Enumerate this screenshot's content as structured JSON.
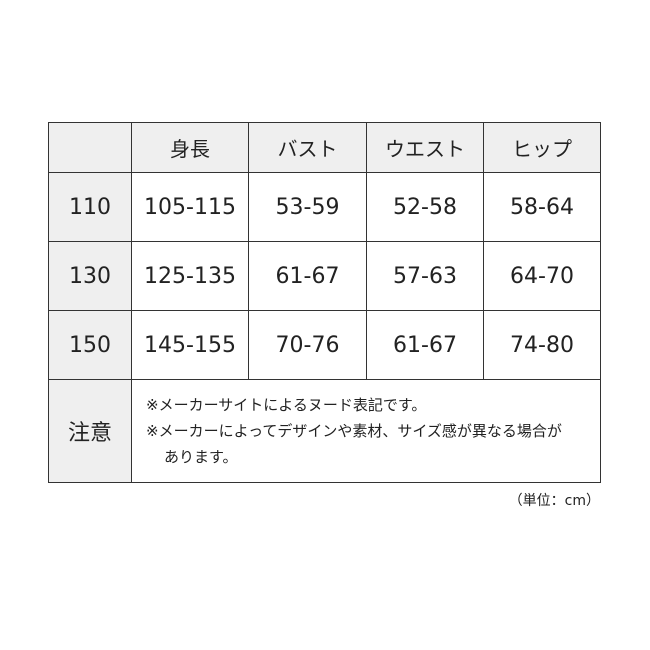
{
  "table": {
    "headers": [
      "",
      "身長",
      "バスト",
      "ウエスト",
      "ヒップ"
    ],
    "rows": [
      {
        "size": "110",
        "values": [
          "105-115",
          "53-59",
          "52-58",
          "58-64"
        ]
      },
      {
        "size": "130",
        "values": [
          "125-135",
          "61-67",
          "57-63",
          "64-70"
        ]
      },
      {
        "size": "150",
        "values": [
          "145-155",
          "70-76",
          "61-67",
          "74-80"
        ]
      }
    ],
    "note_label": "注意",
    "notes": [
      "※メーカーサイトによるヌード表記です。",
      "※メーカーによってデザインや素材、サイズ感が異なる場合が",
      "あります。"
    ]
  },
  "unit": "（単位：cm）"
}
